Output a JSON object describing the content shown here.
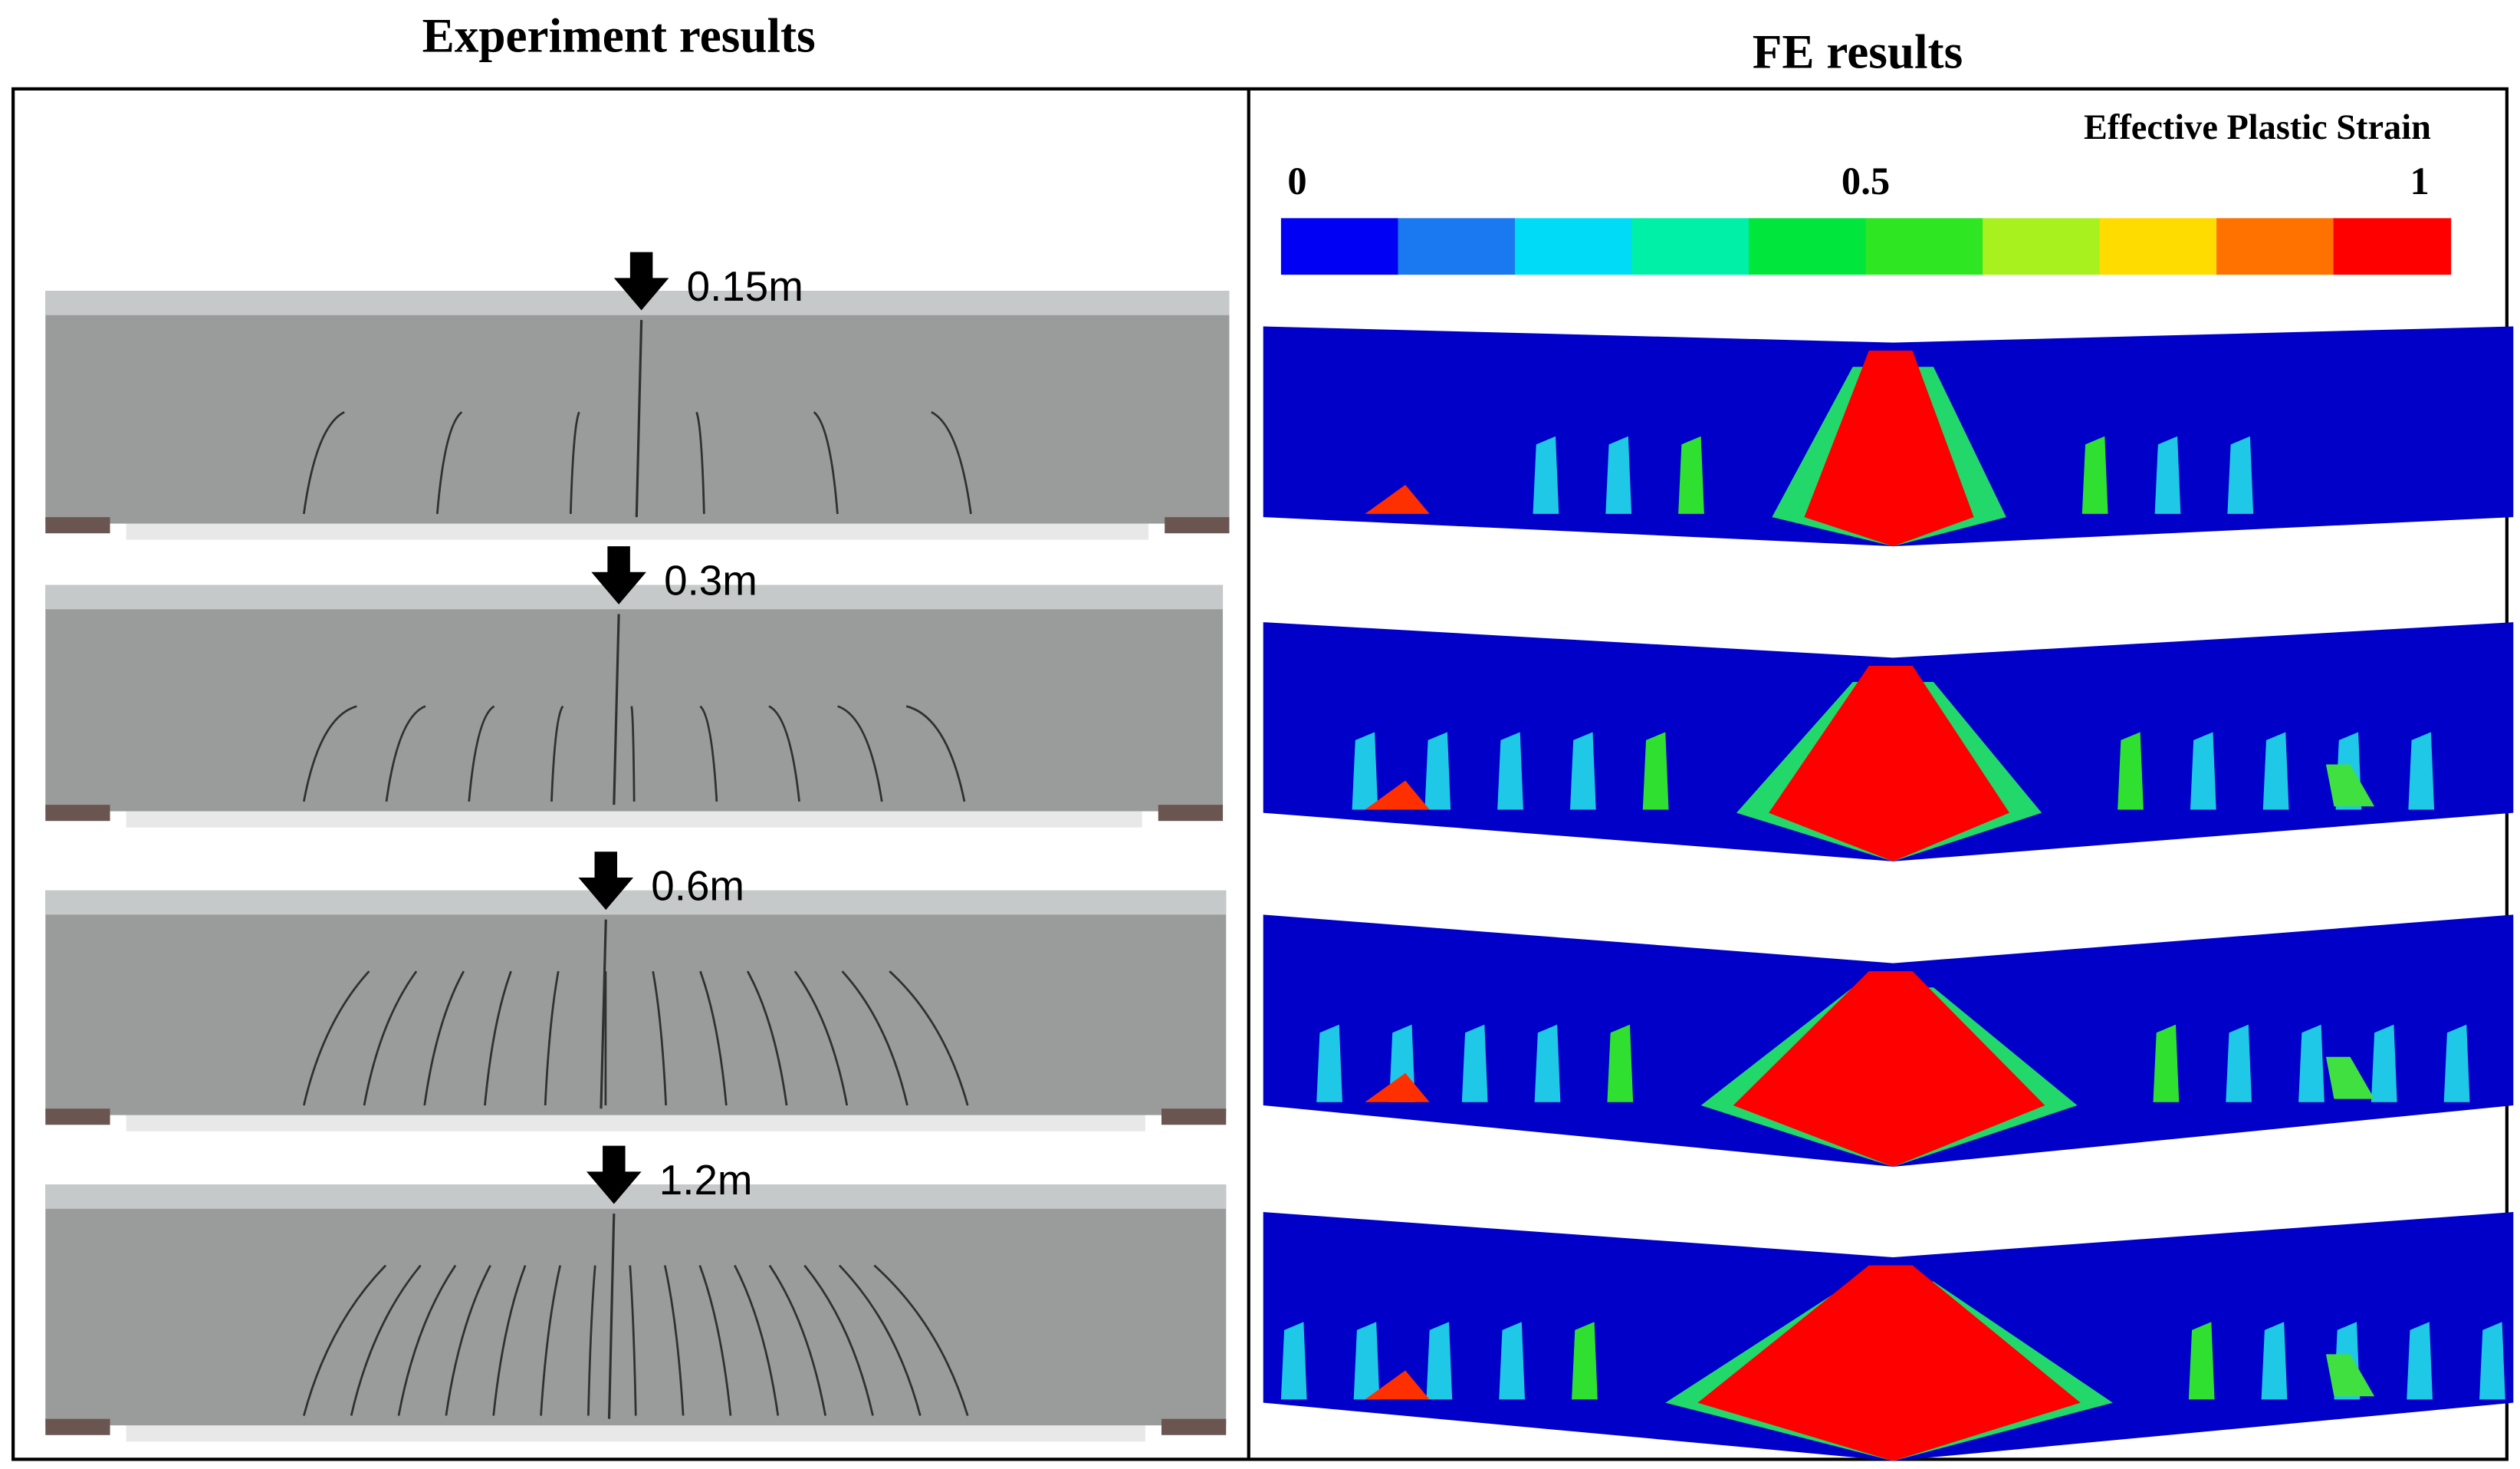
{
  "experiment": {
    "title": "Experiment results",
    "loads": [
      "0.15m",
      "0.3m",
      "0.6m",
      "1.2m"
    ]
  },
  "fe": {
    "title": "FE results",
    "legend": {
      "title": "Effective Plastic Strain",
      "ticks": [
        "0",
        "0.5",
        "1"
      ]
    }
  }
}
